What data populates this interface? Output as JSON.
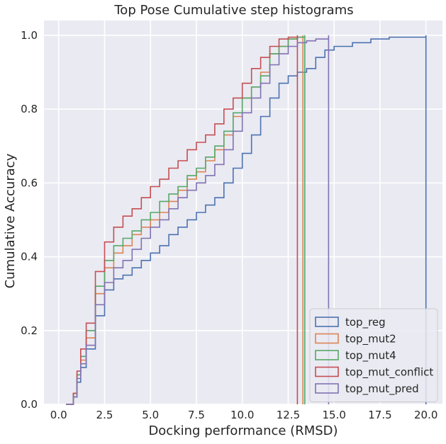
{
  "chart_data": {
    "type": "line",
    "title": "Top Pose Cumulative step histograms",
    "xlabel": "Docking performance (RMSD)",
    "ylabel": "Cumulative Accuracy",
    "xlim": [
      -0.8,
      20.9
    ],
    "ylim": [
      0,
      1.04
    ],
    "xticks": [
      "0.0",
      "2.5",
      "5.0",
      "7.5",
      "10.0",
      "12.5",
      "15.0",
      "17.5",
      "20.0"
    ],
    "yticks": [
      "0.0",
      "0.2",
      "0.4",
      "0.6",
      "0.8",
      "1.0"
    ],
    "grid": true,
    "legend_position": "bottom-right",
    "series": [
      {
        "name": "top_reg",
        "color": "#4c72b0",
        "points": [
          [
            0.4,
            0
          ],
          [
            0.8,
            0.02
          ],
          [
            1.0,
            0.06
          ],
          [
            1.2,
            0.1
          ],
          [
            1.5,
            0.15
          ],
          [
            2.0,
            0.24
          ],
          [
            2.5,
            0.31
          ],
          [
            3.0,
            0.34
          ],
          [
            3.5,
            0.35
          ],
          [
            4.0,
            0.37
          ],
          [
            4.5,
            0.39
          ],
          [
            5.0,
            0.41
          ],
          [
            5.5,
            0.43
          ],
          [
            6.0,
            0.46
          ],
          [
            6.5,
            0.48
          ],
          [
            7.0,
            0.5
          ],
          [
            7.5,
            0.52
          ],
          [
            8.0,
            0.54
          ],
          [
            8.5,
            0.56
          ],
          [
            9.0,
            0.6
          ],
          [
            9.5,
            0.64
          ],
          [
            10.0,
            0.68
          ],
          [
            10.5,
            0.73
          ],
          [
            11.0,
            0.78
          ],
          [
            11.5,
            0.83
          ],
          [
            12.0,
            0.87
          ],
          [
            12.5,
            0.89
          ],
          [
            13.0,
            0.9
          ],
          [
            13.5,
            0.91
          ],
          [
            14.0,
            0.94
          ],
          [
            14.5,
            0.96
          ],
          [
            15.0,
            0.97
          ],
          [
            16.0,
            0.98
          ],
          [
            17.0,
            0.99
          ],
          [
            18.0,
            0.995
          ],
          [
            19.0,
            0.995
          ],
          [
            20.0,
            1.0
          ]
        ]
      },
      {
        "name": "top_mut2",
        "color": "#dd8452",
        "points": [
          [
            0.4,
            0
          ],
          [
            0.8,
            0.03
          ],
          [
            1.0,
            0.08
          ],
          [
            1.2,
            0.12
          ],
          [
            1.5,
            0.18
          ],
          [
            2.0,
            0.3
          ],
          [
            2.5,
            0.37
          ],
          [
            3.0,
            0.41
          ],
          [
            3.5,
            0.43
          ],
          [
            4.0,
            0.46
          ],
          [
            4.5,
            0.48
          ],
          [
            5.0,
            0.5
          ],
          [
            5.5,
            0.52
          ],
          [
            6.0,
            0.55
          ],
          [
            6.5,
            0.58
          ],
          [
            7.0,
            0.61
          ],
          [
            7.5,
            0.63
          ],
          [
            8.0,
            0.66
          ],
          [
            8.5,
            0.69
          ],
          [
            9.0,
            0.73
          ],
          [
            9.5,
            0.78
          ],
          [
            10.0,
            0.83
          ],
          [
            10.5,
            0.86
          ],
          [
            11.0,
            0.9
          ],
          [
            11.5,
            0.95
          ],
          [
            12.0,
            0.97
          ],
          [
            12.5,
            0.99
          ],
          [
            13.0,
            0.995
          ],
          [
            13.3,
            1.0
          ]
        ]
      },
      {
        "name": "top_mut4",
        "color": "#55a868",
        "points": [
          [
            0.4,
            0
          ],
          [
            0.8,
            0.03
          ],
          [
            1.0,
            0.08
          ],
          [
            1.2,
            0.13
          ],
          [
            1.5,
            0.2
          ],
          [
            2.0,
            0.32
          ],
          [
            2.5,
            0.39
          ],
          [
            3.0,
            0.43
          ],
          [
            3.5,
            0.45
          ],
          [
            4.0,
            0.47
          ],
          [
            4.5,
            0.5
          ],
          [
            5.0,
            0.52
          ],
          [
            5.5,
            0.55
          ],
          [
            6.0,
            0.57
          ],
          [
            6.5,
            0.59
          ],
          [
            7.0,
            0.62
          ],
          [
            7.5,
            0.64
          ],
          [
            8.0,
            0.67
          ],
          [
            8.5,
            0.7
          ],
          [
            9.0,
            0.74
          ],
          [
            9.5,
            0.79
          ],
          [
            10.0,
            0.83
          ],
          [
            10.5,
            0.86
          ],
          [
            11.0,
            0.89
          ],
          [
            11.5,
            0.95
          ],
          [
            12.0,
            0.97
          ],
          [
            12.5,
            0.99
          ],
          [
            13.0,
            0.995
          ],
          [
            13.4,
            1.0
          ]
        ]
      },
      {
        "name": "top_mut_conflict",
        "color": "#c44e52",
        "points": [
          [
            0.4,
            0
          ],
          [
            0.8,
            0.03
          ],
          [
            1.0,
            0.09
          ],
          [
            1.2,
            0.15
          ],
          [
            1.5,
            0.22
          ],
          [
            2.0,
            0.36
          ],
          [
            2.5,
            0.44
          ],
          [
            3.0,
            0.48
          ],
          [
            3.5,
            0.51
          ],
          [
            4.0,
            0.53
          ],
          [
            4.5,
            0.56
          ],
          [
            5.0,
            0.59
          ],
          [
            5.5,
            0.61
          ],
          [
            6.0,
            0.64
          ],
          [
            6.5,
            0.66
          ],
          [
            7.0,
            0.69
          ],
          [
            7.5,
            0.71
          ],
          [
            8.0,
            0.73
          ],
          [
            8.5,
            0.76
          ],
          [
            9.0,
            0.8
          ],
          [
            9.5,
            0.83
          ],
          [
            10.0,
            0.87
          ],
          [
            10.5,
            0.91
          ],
          [
            11.0,
            0.94
          ],
          [
            11.5,
            0.97
          ],
          [
            12.0,
            0.99
          ],
          [
            12.5,
            0.995
          ],
          [
            13.0,
            1.0
          ]
        ]
      },
      {
        "name": "top_mut_pred",
        "color": "#8172b3",
        "points": [
          [
            0.4,
            0
          ],
          [
            0.8,
            0.02
          ],
          [
            1.0,
            0.07
          ],
          [
            1.2,
            0.11
          ],
          [
            1.5,
            0.16
          ],
          [
            2.0,
            0.27
          ],
          [
            2.5,
            0.33
          ],
          [
            3.0,
            0.37
          ],
          [
            3.5,
            0.39
          ],
          [
            4.0,
            0.42
          ],
          [
            4.5,
            0.45
          ],
          [
            5.0,
            0.48
          ],
          [
            5.5,
            0.5
          ],
          [
            6.0,
            0.53
          ],
          [
            6.5,
            0.56
          ],
          [
            7.0,
            0.58
          ],
          [
            7.5,
            0.6
          ],
          [
            8.0,
            0.62
          ],
          [
            8.5,
            0.65
          ],
          [
            9.0,
            0.69
          ],
          [
            9.5,
            0.74
          ],
          [
            10.0,
            0.79
          ],
          [
            10.5,
            0.83
          ],
          [
            11.0,
            0.87
          ],
          [
            11.5,
            0.92
          ],
          [
            12.0,
            0.95
          ],
          [
            12.5,
            0.97
          ],
          [
            13.0,
            0.98
          ],
          [
            13.5,
            0.985
          ],
          [
            14.0,
            0.99
          ],
          [
            14.7,
            1.0
          ]
        ]
      }
    ]
  }
}
